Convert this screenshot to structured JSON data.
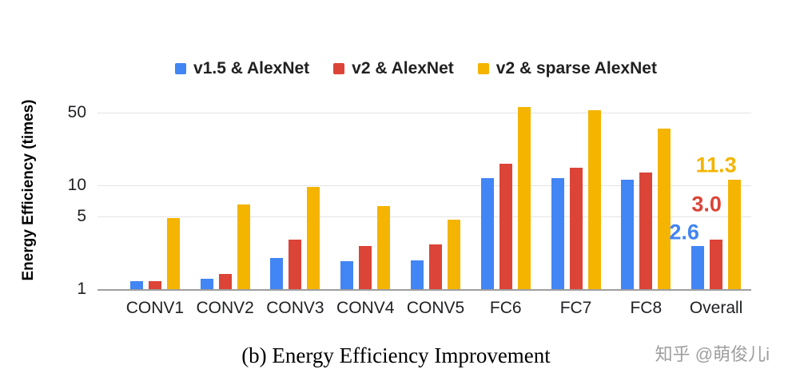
{
  "chart_data": {
    "type": "bar",
    "scale": "log",
    "title": "(b) Energy Efficiency Improvement",
    "ylabel": "Energy Efficiency (times)",
    "xlabel": "",
    "yticks": [
      1,
      5,
      10,
      50
    ],
    "ylim": [
      1,
      84
    ],
    "grid": true,
    "legend_position": "top",
    "categories": [
      "CONV1",
      "CONV2",
      "CONV3",
      "CONV4",
      "CONV5",
      "FC6",
      "FC7",
      "FC8",
      "Overall"
    ],
    "series": [
      {
        "name": "v1.5 & AlexNet",
        "color": "#4285F4",
        "values": [
          1.2,
          1.25,
          2.0,
          1.85,
          1.9,
          11.7,
          11.8,
          11.3,
          2.6
        ]
      },
      {
        "name": "v2 & AlexNet",
        "color": "#DB4437",
        "values": [
          1.2,
          1.4,
          3.0,
          2.6,
          2.7,
          16.0,
          14.8,
          13.2,
          3.0
        ]
      },
      {
        "name": "v2 & sparse AlexNet",
        "color": "#F4B400",
        "values": [
          4.8,
          6.5,
          9.7,
          6.3,
          4.7,
          57.0,
          53.0,
          35.0,
          11.3
        ]
      }
    ],
    "data_labels": {
      "category": "Overall",
      "values": [
        "2.6",
        "3.0",
        "11.3"
      ]
    }
  },
  "caption": "(b) Energy Efficiency Improvement",
  "watermark": "知乎 @萌俊儿i"
}
